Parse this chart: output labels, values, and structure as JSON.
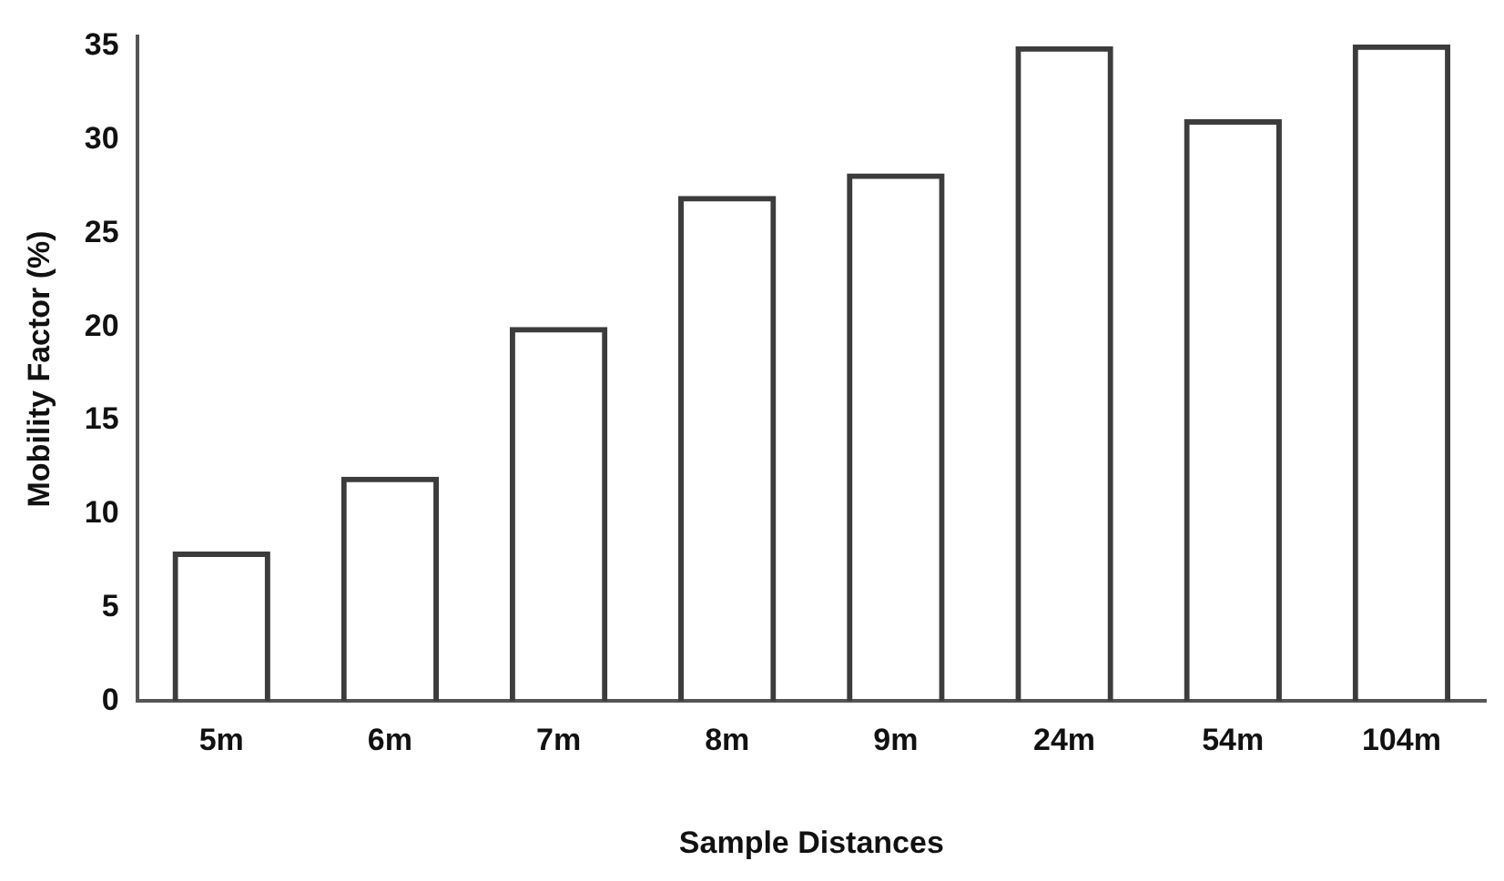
{
  "chart_data": {
    "type": "bar",
    "xlabel": "Sample Distances",
    "ylabel": "Mobility Factor (%)",
    "categories": [
      "5m",
      "6m",
      "7m",
      "8m",
      "9m",
      "24m",
      "54m",
      "104m"
    ],
    "values": [
      8,
      12,
      20,
      27,
      28.2,
      35,
      31.1,
      35.1
    ],
    "color": "#3c3c3c",
    "ylim": [
      0,
      35.5
    ],
    "yticks": [
      0,
      5,
      10,
      15,
      20,
      25,
      30,
      35
    ],
    "grid": false,
    "legend": false
  }
}
